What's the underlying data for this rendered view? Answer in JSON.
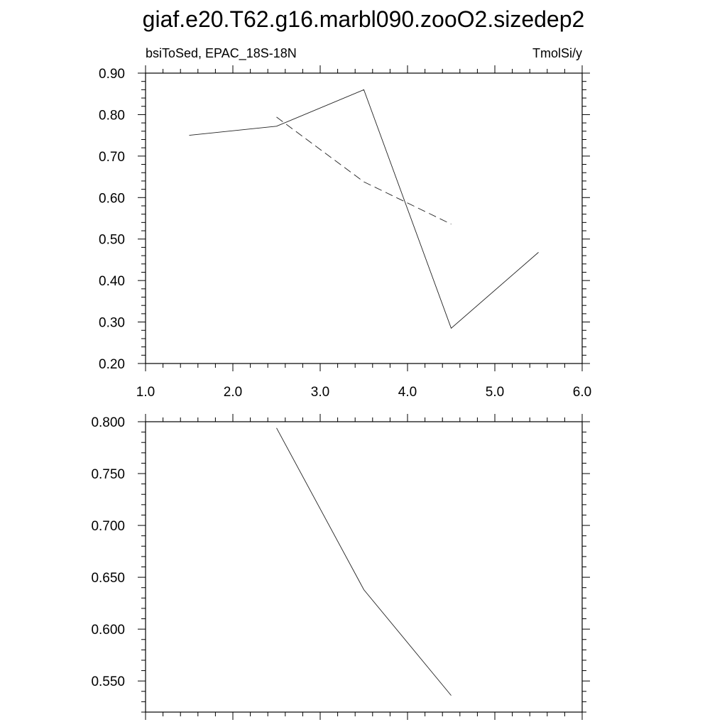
{
  "title": "giaf.e20.T62.g16.marbl090.zooO2.sizedep2",
  "chart_data": [
    {
      "type": "line",
      "left_label": "bsiToSed, EPAC_18S-18N",
      "right_label": "TmolSi/y",
      "xlim": [
        1.0,
        6.0
      ],
      "ylim": [
        0.2,
        0.9
      ],
      "x_ticks": [
        1.0,
        2.0,
        3.0,
        4.0,
        5.0,
        6.0
      ],
      "x_tick_labels": [
        "1.0",
        "2.0",
        "3.0",
        "4.0",
        "5.0",
        "6.0"
      ],
      "y_ticks": [
        0.2,
        0.3,
        0.4,
        0.5,
        0.6,
        0.7,
        0.8,
        0.9
      ],
      "y_tick_labels": [
        "0.20",
        "0.30",
        "0.40",
        "0.50",
        "0.60",
        "0.70",
        "0.80",
        "0.90"
      ],
      "grid": false,
      "series": [
        {
          "style": "solid",
          "x": [
            1.5,
            2.5,
            3.5,
            4.5,
            5.5
          ],
          "y": [
            0.75,
            0.772,
            0.86,
            0.285,
            0.468
          ]
        },
        {
          "style": "dashed",
          "x": [
            2.5,
            3.5,
            4.5
          ],
          "y": [
            0.794,
            0.638,
            0.536
          ]
        }
      ]
    },
    {
      "type": "line",
      "xlim": [
        1.0,
        6.0
      ],
      "ylim": [
        0.52,
        0.8
      ],
      "x_ticks": [
        1.0,
        2.0,
        3.0,
        4.0,
        5.0,
        6.0
      ],
      "y_ticks": [
        0.55,
        0.6,
        0.65,
        0.7,
        0.75,
        0.8
      ],
      "y_tick_labels": [
        "0.550",
        "0.600",
        "0.650",
        "0.700",
        "0.750",
        "0.800"
      ],
      "grid": false,
      "series": [
        {
          "style": "solid",
          "x": [
            2.5,
            3.5,
            4.5
          ],
          "y": [
            0.794,
            0.638,
            0.536
          ]
        }
      ]
    }
  ]
}
